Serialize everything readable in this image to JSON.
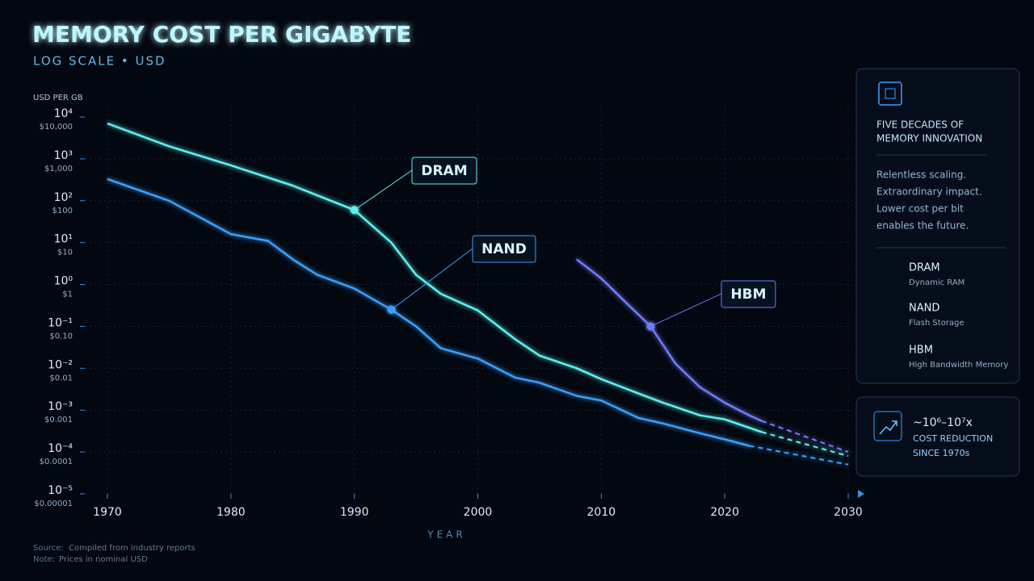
{
  "chart_data": {
    "type": "line",
    "title": "MEMORY COST PER GIGABYTE",
    "subtitle": "LOG SCALE • USD",
    "y_label": "USD PER GB",
    "x_label": "YEAR",
    "log_scale": true,
    "grid": true,
    "dashed_last_segment": true,
    "xlim": [
      1970,
      2030
    ],
    "xticks": [
      1970,
      1980,
      1990,
      2000,
      2010,
      2020,
      2030
    ],
    "ylim": [
      1e-05,
      10000
    ],
    "yticks": [
      {
        "value": 10000,
        "label": "10⁴",
        "sublabel": "$10,000"
      },
      {
        "value": 1000,
        "label": "10³",
        "sublabel": "$1,000"
      },
      {
        "value": 100,
        "label": "10²",
        "sublabel": "$100"
      },
      {
        "value": 10,
        "label": "10¹",
        "sublabel": "$10"
      },
      {
        "value": 1,
        "label": "10⁰",
        "sublabel": "$1"
      },
      {
        "value": 0.1,
        "label": "10⁻¹",
        "sublabel": "$0.10"
      },
      {
        "value": 0.01,
        "label": "10⁻²",
        "sublabel": "$0.01"
      },
      {
        "value": 0.001,
        "label": "10⁻³",
        "sublabel": "$0.001"
      },
      {
        "value": 0.0001,
        "label": "10⁻⁴",
        "sublabel": "$0.0001"
      },
      {
        "value": 1e-05,
        "label": "10⁻⁵",
        "sublabel": "$0.00001"
      }
    ],
    "series": [
      {
        "name": "DRAM",
        "description": "Dynamic RAM",
        "color": "#5ef0f0",
        "x": [
          1970,
          1975,
          1980,
          1985,
          1990,
          1993,
          1995,
          1997,
          2000,
          2003,
          2005,
          2008,
          2010,
          2013,
          2015,
          2018,
          2020,
          2023,
          2030
        ],
        "values": [
          7000,
          2000,
          700,
          230,
          60,
          10,
          1.7,
          0.6,
          0.24,
          0.05,
          0.02,
          0.01,
          0.0055,
          0.0025,
          0.0015,
          0.00075,
          0.0006,
          0.0003,
          8e-05
        ]
      },
      {
        "name": "NAND",
        "description": "Flash Storage",
        "color": "#3aa0ff",
        "x": [
          1970,
          1975,
          1980,
          1983,
          1985,
          1987,
          1990,
          1993,
          1995,
          1997,
          2000,
          2003,
          2005,
          2008,
          2010,
          2013,
          2015,
          2018,
          2020,
          2022,
          2030
        ],
        "values": [
          330,
          100,
          16,
          11,
          4,
          1.7,
          0.8,
          0.25,
          0.1,
          0.03,
          0.017,
          0.006,
          0.0045,
          0.0022,
          0.0017,
          0.00065,
          0.00048,
          0.00028,
          0.0002,
          0.00014,
          5e-05
        ]
      },
      {
        "name": "HBM",
        "description": "High Bandwidth Memory",
        "color": "#6f7bff",
        "x": [
          2008,
          2010,
          2012,
          2014,
          2016,
          2018,
          2020,
          2022,
          2023,
          2030
        ],
        "values": [
          4,
          1.4,
          0.37,
          0.1,
          0.013,
          0.0035,
          0.0015,
          0.00075,
          0.00055,
          0.0001
        ]
      }
    ]
  },
  "panel": {
    "heading": [
      "FIVE DECADES OF",
      "MEMORY INNOVATION"
    ],
    "text": [
      "Relentless scaling.",
      "Extraordinary impact.",
      "Lower cost per bit",
      "enables the future."
    ]
  },
  "highlight": {
    "value": "~10⁶–10⁷x",
    "lines": [
      "COST REDUCTION",
      "SINCE 1970s"
    ]
  },
  "footer": {
    "source_label": "Source:",
    "source": "Compiled from industry reports",
    "note_label": "Note:",
    "note": "Prices in nominal USD"
  }
}
